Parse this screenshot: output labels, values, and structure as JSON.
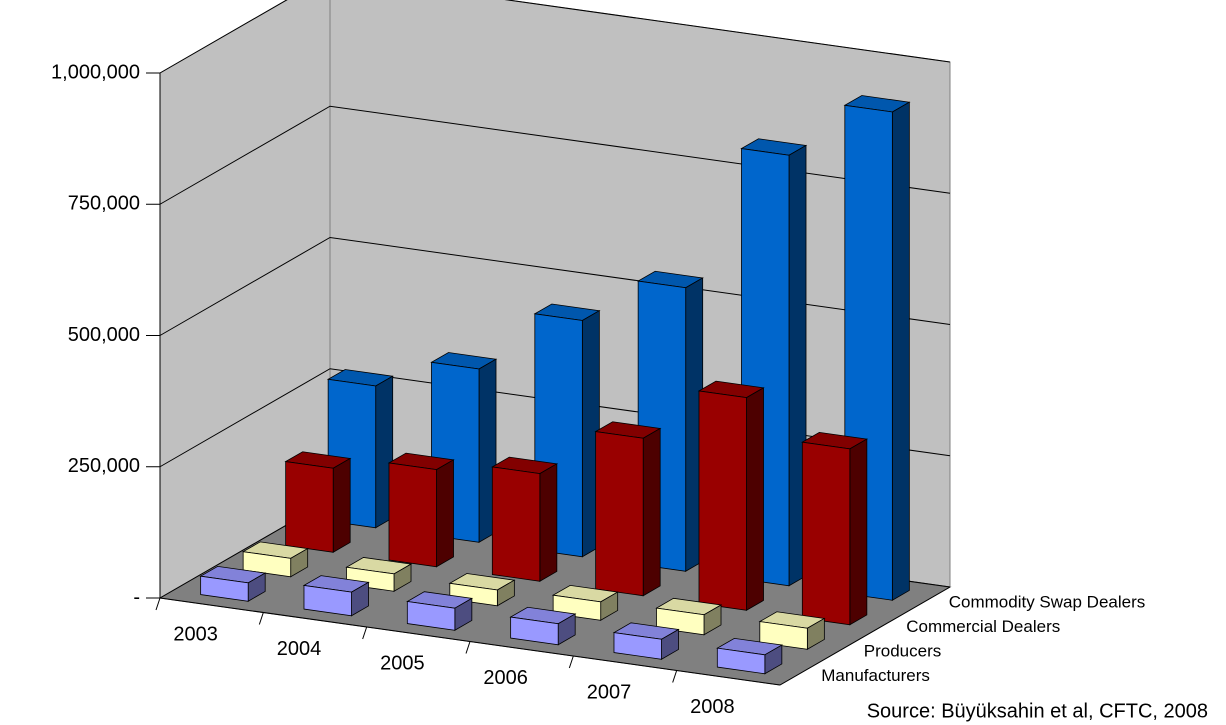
{
  "chart_data": {
    "type": "bar3d",
    "categories": [
      "2003",
      "2004",
      "2005",
      "2006",
      "2007",
      "2008"
    ],
    "series": [
      {
        "name": "Manufacturers",
        "color": "#9999ff",
        "values": [
          35000,
          45000,
          42000,
          40000,
          38000,
          36000
        ]
      },
      {
        "name": "Producers",
        "color": "#ffffc0",
        "values": [
          35000,
          33000,
          30000,
          35000,
          38000,
          40000
        ]
      },
      {
        "name": "Commercial Dealers",
        "color": "#990000",
        "values": [
          160000,
          185000,
          205000,
          300000,
          405000,
          335000
        ]
      },
      {
        "name": "Commodity Swap Dealers",
        "color": "#0066cc",
        "values": [
          270000,
          330000,
          450000,
          540000,
          820000,
          930000
        ]
      }
    ],
    "ylim": [
      0,
      1000000
    ],
    "yticks": [
      {
        "value": 0,
        "label": "-"
      },
      {
        "value": 250000,
        "label": "250,000"
      },
      {
        "value": 500000,
        "label": "500,000"
      },
      {
        "value": 750000,
        "label": "750,000"
      },
      {
        "value": 1000000,
        "label": "1,000,000"
      }
    ],
    "grid": true,
    "source": "Source: Büyüksahin et al, CFTC, 2008"
  }
}
